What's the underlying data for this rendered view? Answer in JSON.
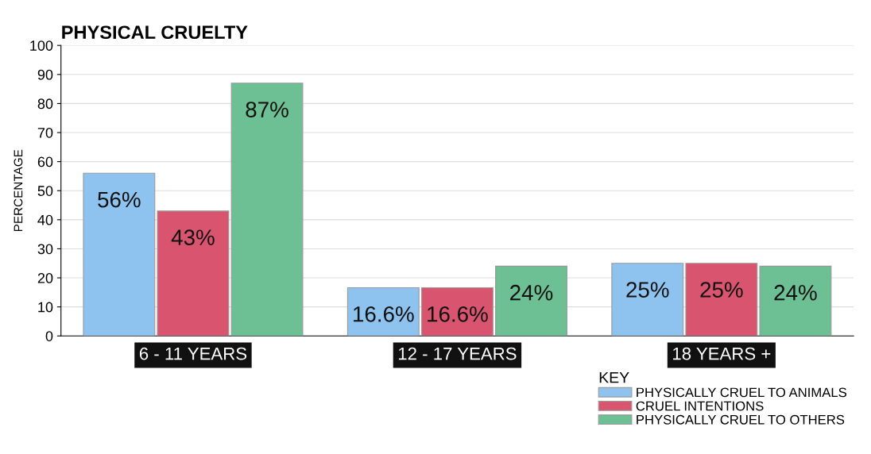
{
  "chart_data": {
    "type": "bar",
    "title": "PHYSICAL CRUELTY",
    "ylabel": "PERCENTAGE",
    "legend_title": "KEY",
    "categories": [
      "6 - 11 YEARS",
      "12 - 17 YEARS",
      "18 YEARS +"
    ],
    "series": [
      {
        "name": "PHYSICALLY CRUEL TO ANIMALS",
        "color": "#8ec3f0",
        "values": [
          56,
          16.6,
          25
        ],
        "value_labels": [
          "56%",
          "16.6%",
          "25%"
        ]
      },
      {
        "name": "CRUEL INTENTIONS",
        "color": "#d9546e",
        "values": [
          43,
          16.6,
          25
        ],
        "value_labels": [
          "43%",
          "16.6%",
          "25%"
        ]
      },
      {
        "name": "PHYSICALLY CRUEL TO OTHERS",
        "color": "#6dbf94",
        "values": [
          87,
          24,
          24
        ],
        "value_labels": [
          "87%",
          "24%",
          "24%"
        ]
      }
    ],
    "ylim": [
      0,
      100
    ],
    "yticks": [
      0,
      10,
      20,
      30,
      40,
      50,
      60,
      70,
      80,
      90,
      100
    ],
    "grid": "y",
    "legend": "bottom right"
  }
}
